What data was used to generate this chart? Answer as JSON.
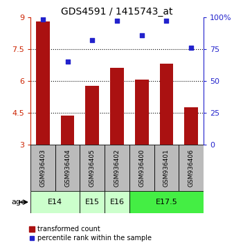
{
  "title": "GDS4591 / 1415743_at",
  "samples": [
    "GSM936403",
    "GSM936404",
    "GSM936405",
    "GSM936402",
    "GSM936400",
    "GSM936401",
    "GSM936406"
  ],
  "bar_values": [
    8.8,
    4.35,
    5.75,
    6.6,
    6.05,
    6.8,
    4.75
  ],
  "percentile_values": [
    98,
    65,
    82,
    97,
    86,
    97,
    76
  ],
  "bar_color": "#aa1111",
  "dot_color": "#2222cc",
  "ylim_left": [
    3,
    9
  ],
  "ylim_right": [
    0,
    100
  ],
  "yticks_left": [
    3,
    4.5,
    6,
    7.5,
    9
  ],
  "yticks_right": [
    0,
    25,
    50,
    75,
    100
  ],
  "ytick_labels_left": [
    "3",
    "4.5",
    "6",
    "7.5",
    "9"
  ],
  "ytick_labels_right": [
    "0",
    "25",
    "50",
    "75",
    "100%"
  ],
  "grid_values": [
    4.5,
    6.0,
    7.5
  ],
  "age_groups": [
    {
      "label": "E14",
      "start": 0,
      "end": 2,
      "color": "#ccffcc"
    },
    {
      "label": "E15",
      "start": 2,
      "end": 3,
      "color": "#ccffcc"
    },
    {
      "label": "E16",
      "start": 3,
      "end": 4,
      "color": "#ccffcc"
    },
    {
      "label": "E17.5",
      "start": 4,
      "end": 7,
      "color": "#44ee44"
    }
  ],
  "legend_bar_label": "transformed count",
  "legend_dot_label": "percentile rank within the sample",
  "age_label": "age",
  "background_color": "#ffffff",
  "sample_bg_color": "#bbbbbb"
}
